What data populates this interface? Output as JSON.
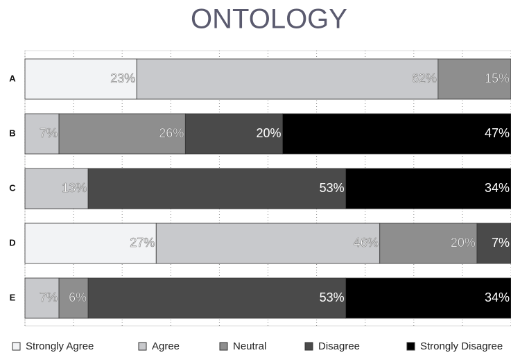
{
  "chart_data": {
    "type": "stacked-bar-horizontal",
    "title": "ONTOLOGY",
    "categories": [
      "A",
      "B",
      "C",
      "D",
      "E"
    ],
    "series": [
      {
        "name": "Strongly Agree",
        "color": "#f2f3f5",
        "values": [
          23,
          null,
          null,
          27,
          null
        ],
        "value_labels": [
          "23%",
          null,
          null,
          "27%",
          null
        ]
      },
      {
        "name": "Agree",
        "color": "#c8c9cc",
        "values": [
          62,
          7,
          13,
          46,
          7
        ],
        "value_labels": [
          "62%",
          "7%",
          "13%",
          "46%",
          "7%"
        ]
      },
      {
        "name": "Neutral",
        "color": "#8e8e8e",
        "values": [
          15,
          26,
          null,
          20,
          6
        ],
        "value_labels": [
          "15%",
          "26%",
          null,
          "20%",
          "6%"
        ]
      },
      {
        "name": "Disagree",
        "color": "#4a4a4a",
        "values": [
          null,
          20,
          53,
          7,
          53
        ],
        "value_labels": [
          null,
          "20%",
          "53%",
          "7%",
          "53%"
        ]
      },
      {
        "name": "Strongly Disagree",
        "color": "#000000",
        "values": [
          null,
          47,
          34,
          null,
          34
        ],
        "value_labels": [
          null,
          "47%",
          "34%",
          null,
          "34%"
        ]
      }
    ],
    "xlim": [
      0,
      100
    ],
    "xticks": [
      0,
      10,
      20,
      30,
      40,
      50,
      60,
      70,
      80,
      90,
      100
    ],
    "grid": true
  }
}
